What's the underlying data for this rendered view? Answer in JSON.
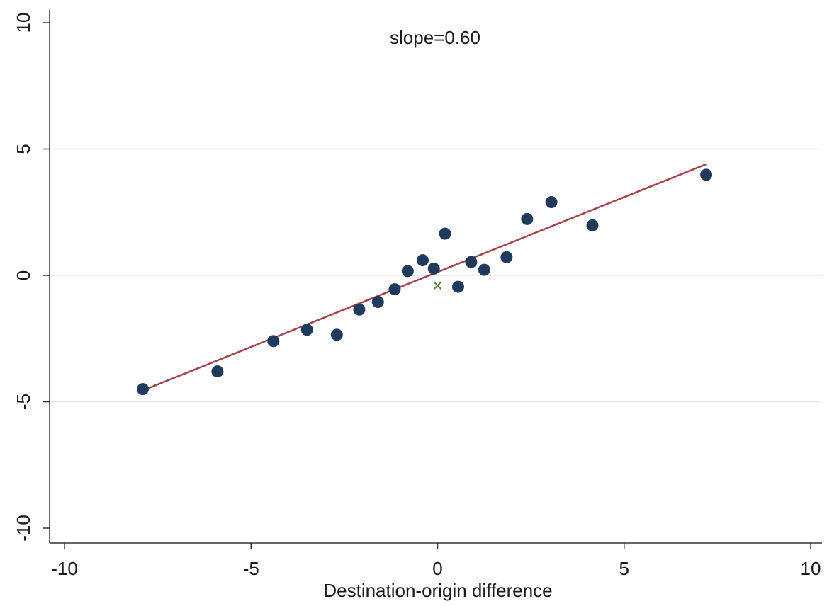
{
  "chart_data": {
    "type": "scatter",
    "annotation": "slope=0.60",
    "xlabel": "Destination-origin difference",
    "ylabel": "",
    "xlim": [
      -10,
      10
    ],
    "ylim": [
      -10,
      10
    ],
    "xticks": [
      -10,
      -5,
      0,
      5,
      10
    ],
    "yticks": [
      -10,
      -5,
      0,
      5,
      10
    ],
    "xtick_labels": [
      "-10",
      "-5",
      "0",
      "5",
      "10"
    ],
    "ytick_labels": [
      "-10",
      "-5",
      "0",
      "5",
      "10"
    ],
    "grid": "horizontal",
    "series": [
      {
        "marker": "circle",
        "color": "#1f3b5c",
        "points": [
          {
            "x": -7.9,
            "y": -4.5
          },
          {
            "x": -5.9,
            "y": -3.8
          },
          {
            "x": -4.4,
            "y": -2.6
          },
          {
            "x": -3.5,
            "y": -2.15
          },
          {
            "x": -2.7,
            "y": -2.35
          },
          {
            "x": -2.1,
            "y": -1.35
          },
          {
            "x": -1.6,
            "y": -1.05
          },
          {
            "x": -1.15,
            "y": -0.55
          },
          {
            "x": -0.8,
            "y": 0.17
          },
          {
            "x": -0.4,
            "y": 0.6
          },
          {
            "x": -0.1,
            "y": 0.27
          },
          {
            "x": 0.2,
            "y": 1.65
          },
          {
            "x": 0.55,
            "y": -0.45
          },
          {
            "x": 0.9,
            "y": 0.53
          },
          {
            "x": 1.25,
            "y": 0.22
          },
          {
            "x": 1.85,
            "y": 0.72
          },
          {
            "x": 2.4,
            "y": 2.23
          },
          {
            "x": 3.05,
            "y": 2.9
          },
          {
            "x": 4.15,
            "y": 1.98
          },
          {
            "x": 7.2,
            "y": 3.98
          }
        ]
      },
      {
        "marker": "x",
        "color": "#4f7f2c",
        "points": [
          {
            "x": 0.0,
            "y": -0.4
          }
        ]
      }
    ],
    "fit_line": {
      "color": "#a7414a",
      "x": [
        -7.9,
        7.2
      ],
      "y": [
        -4.55,
        4.4
      ]
    }
  }
}
